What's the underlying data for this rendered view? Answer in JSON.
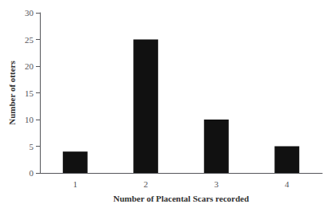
{
  "chart_data": {
    "type": "bar",
    "categories": [
      1,
      2,
      3,
      4
    ],
    "values": [
      4,
      25,
      10,
      5
    ],
    "color": "#111111",
    "xlabel": "Number of Placental Scars recorded",
    "ylabel": "Number of otters",
    "ylim": [
      0,
      30
    ],
    "yticks": [
      0,
      5,
      10,
      15,
      20,
      25,
      30
    ],
    "grid": false
  }
}
